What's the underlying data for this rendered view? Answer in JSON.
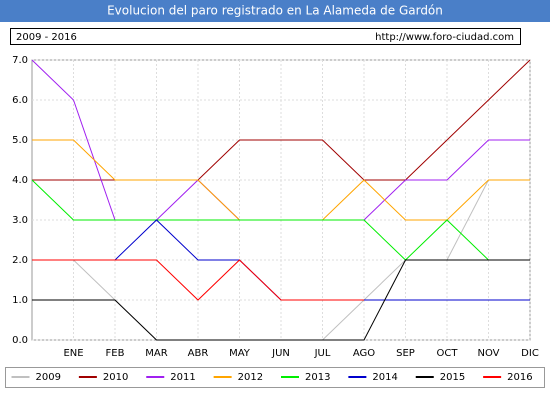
{
  "chart_data": {
    "type": "line",
    "title": "Evolucion del paro registrado en La Alameda de Gardón",
    "subtitle": "2009 - 2016",
    "source": "http://www.foro-ciudad.com",
    "categories": [
      null,
      "ENE",
      "FEB",
      "MAR",
      "ABR",
      "MAY",
      "JUN",
      "JUL",
      "AGO",
      "SEP",
      "OCT",
      "NOV",
      "DIC"
    ],
    "series": [
      {
        "name": "2009",
        "color": "#c0c0c0",
        "values": [
          2,
          2,
          1,
          0,
          0,
          0,
          0,
          0,
          1,
          2,
          2,
          4,
          4
        ]
      },
      {
        "name": "2010",
        "color": "#a00000",
        "values": [
          4,
          4,
          4,
          4,
          4,
          5,
          5,
          5,
          4,
          4,
          5,
          6,
          7
        ]
      },
      {
        "name": "2011",
        "color": "#a020f0",
        "values": [
          7,
          6,
          3,
          3,
          4,
          3,
          3,
          3,
          3,
          4,
          4,
          5,
          5
        ]
      },
      {
        "name": "2012",
        "color": "#ffa500",
        "values": [
          5,
          5,
          4,
          4,
          4,
          3,
          3,
          3,
          4,
          3,
          3,
          4,
          4
        ]
      },
      {
        "name": "2013",
        "color": "#00ee00",
        "values": [
          4,
          3,
          3,
          3,
          3,
          3,
          3,
          3,
          3,
          2,
          3,
          2,
          null
        ]
      },
      {
        "name": "2014",
        "color": "#0000cc",
        "values": [
          2,
          2,
          2,
          3,
          2,
          2,
          1,
          1,
          1,
          1,
          1,
          1,
          1
        ]
      },
      {
        "name": "2015",
        "color": "#000000",
        "values": [
          1,
          1,
          1,
          0,
          0,
          0,
          0,
          0,
          0,
          2,
          2,
          2,
          2
        ]
      },
      {
        "name": "2016",
        "color": "#ff0000",
        "values": [
          2,
          2,
          2,
          2,
          1,
          2,
          1,
          1,
          1,
          null,
          null,
          null,
          null
        ]
      }
    ],
    "ylim": [
      0,
      7
    ],
    "yticks": [
      {
        "value": 0,
        "label": "0.0"
      },
      {
        "value": 1,
        "label": "1.0"
      },
      {
        "value": 2,
        "label": "2.0"
      },
      {
        "value": 3,
        "label": "3.0"
      },
      {
        "value": 4,
        "label": "4.0"
      },
      {
        "value": 5,
        "label": "5.0"
      },
      {
        "value": 6,
        "label": "6.0"
      },
      {
        "value": 7,
        "label": "7.0"
      }
    ],
    "grid": true
  }
}
